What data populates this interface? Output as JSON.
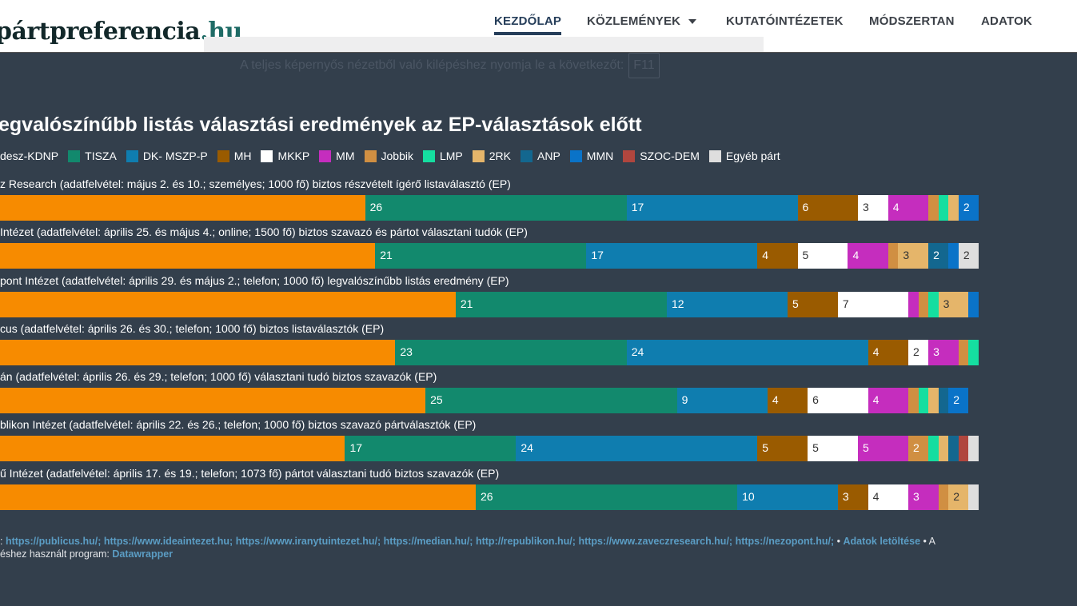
{
  "header": {
    "logo_main": "pártpreferencia",
    "logo_tld": ".hu",
    "nav": [
      {
        "label": "KEZDŐLAP",
        "active": true
      },
      {
        "label": "KÖZLEMÉNYEK",
        "dropdown": true
      },
      {
        "label": "KUTATÓINTÉZETEK"
      },
      {
        "label": "MÓDSZERTAN"
      },
      {
        "label": "ADATOK"
      }
    ]
  },
  "fullscreen_notice": {
    "text": "A teljes képernyős nézetből való kilépéshez nyomja le a következőt:",
    "key": "F11"
  },
  "chart_data": {
    "type": "bar",
    "stacked": true,
    "orientation": "horizontal",
    "title": "egvalószínűbb listás választási eredmények az EP-választások előtt",
    "legend_position": "top",
    "series_names": [
      "desz-KDNP",
      "TISZA",
      "DK- MSZP-P",
      "MH",
      "MKKP",
      "MM",
      "Jobbik",
      "LMP",
      "2RK",
      "ANP",
      "MMN",
      "SZOC-DEM",
      "Egyéb párt"
    ],
    "colors": [
      "#f78b00",
      "#12896d",
      "#0f7daf",
      "#9a5b00",
      "#ffffff",
      "#c52dbe",
      "#d08f42",
      "#15dea0",
      "#e5b56a",
      "#13678f",
      "#0a73c8",
      "#b0463e",
      "#dedede"
    ],
    "categories": [
      "z Research (adatfelvétel: május 2. és 10.; személyes; 1000 fő) biztos részvételt ígérő listaválasztó (EP)",
      "Intézet (adatfelvétel: április 25. és május 4.; online; 1500 fő) biztos szavazó és pártot választani tudók (EP)",
      "pont Intézet (adatfelvétel: április 29. és május 2.; telefon; 1000 fő) legvalószínűbb listás eredmény (EP)",
      "cus (adatfelvétel: április 26. és 30.; telefon; 1000 fő) biztos listaválasztók (EP)",
      "án (adatfelvétel: április 26. és 29.; telefon; 1000 fő) választani tudó biztos szavazók (EP)",
      "blikon Intézet (adatfelvétel: április 22. és 26.; telefon; 1000 fő) biztos szavazó pártválasztók (EP)",
      "ű Intézet (adatfelvétel: április 17. és 19.; telefon; 1073 fő) pártot választani tudó biztos szavazók (EP)"
    ],
    "values": [
      [
        39,
        26,
        17,
        6,
        3,
        4,
        1,
        1,
        1,
        0,
        2,
        0,
        0
      ],
      [
        40,
        21,
        17,
        4,
        5,
        4,
        1,
        0,
        3,
        2,
        1,
        0,
        2
      ],
      [
        48,
        21,
        12,
        5,
        7,
        1,
        1,
        1,
        3,
        0,
        1,
        0,
        0
      ],
      [
        42,
        23,
        24,
        4,
        2,
        3,
        1,
        1,
        0,
        0,
        0,
        0,
        0
      ],
      [
        45,
        25,
        9,
        4,
        6,
        4,
        1,
        1,
        1,
        1,
        2,
        0,
        0
      ],
      [
        37,
        17,
        24,
        5,
        5,
        5,
        2,
        1,
        1,
        1,
        0,
        1,
        1
      ],
      [
        50,
        26,
        10,
        3,
        4,
        3,
        1,
        0,
        2,
        0,
        0,
        0,
        1
      ]
    ],
    "xlim": [
      0,
      100
    ]
  },
  "footer": {
    "prefix": ": ",
    "sources": [
      "https://publicus.hu/;",
      "https://www.ideaintezet.hu;",
      "https://www.iranytuintezet.hu/;",
      "https://median.hu/;",
      "http://republikon.hu/;",
      "https://www.zaveczresearch.hu/;",
      "https://nezopont.hu/;"
    ],
    "sep": " • ",
    "download": "Adatok letöltése",
    "after": " • A",
    "line2": "éshez használt program: ",
    "tool": "Datawrapper"
  }
}
